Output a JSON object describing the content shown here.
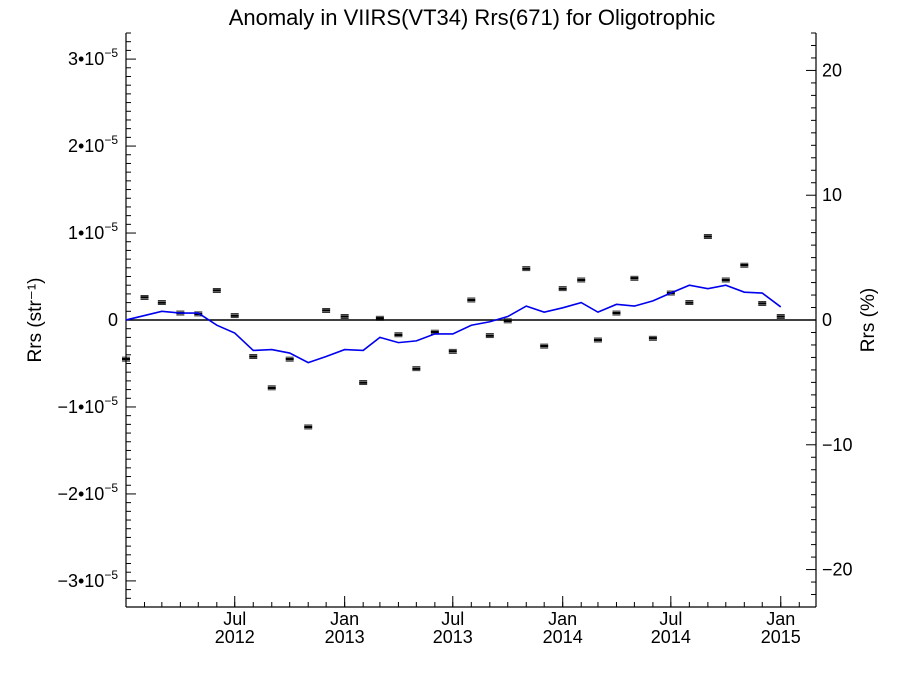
{
  "chart_data": {
    "type": "scatter",
    "title": "Anomaly in VIIRS(VT34) Rrs(671) for Oligotrophic",
    "ylabel_left": "Rrs (str⁻¹)",
    "ylabel_right": "Rrs (%)",
    "x_axis": "date",
    "xlim": [
      "2012-01-01",
      "2015-03-01"
    ],
    "ylim_left": [
      -3.3e-05,
      3.3e-05
    ],
    "ylim_right": [
      -23,
      23
    ],
    "x_ticks": [
      {
        "date": "2012-07-01",
        "month": "Jul",
        "year": "2012"
      },
      {
        "date": "2013-01-01",
        "month": "Jan",
        "year": "2013"
      },
      {
        "date": "2013-07-01",
        "month": "Jul",
        "year": "2013"
      },
      {
        "date": "2014-01-01",
        "month": "Jan",
        "year": "2014"
      },
      {
        "date": "2014-07-01",
        "month": "Jul",
        "year": "2014"
      },
      {
        "date": "2015-01-01",
        "month": "Jan",
        "year": "2015"
      }
    ],
    "y_ticks_left": [
      {
        "value": 3e-05,
        "mant": "3•10",
        "exp": "−5"
      },
      {
        "value": 2e-05,
        "mant": "2•10",
        "exp": "−5"
      },
      {
        "value": 1e-05,
        "mant": "1•10",
        "exp": "−5"
      },
      {
        "value": 0,
        "mant": "0",
        "exp": ""
      },
      {
        "value": -1e-05,
        "mant": "−1•10",
        "exp": "−5"
      },
      {
        "value": -2e-05,
        "mant": "−2•10",
        "exp": "−5"
      },
      {
        "value": -3e-05,
        "mant": "−3•10",
        "exp": "−5"
      }
    ],
    "y_ticks_right": [
      {
        "value": 20,
        "label": "20"
      },
      {
        "value": 10,
        "label": "10"
      },
      {
        "value": 0,
        "label": "0"
      },
      {
        "value": -10,
        "label": "−10"
      },
      {
        "value": -20,
        "label": "−20"
      }
    ],
    "zero_line": true,
    "grid": false,
    "series": [
      {
        "kind": "points_with_errorbars",
        "color": "#000000",
        "points": [
          {
            "x": "2012-01-01",
            "y": -4.5e-06
          },
          {
            "x": "2012-02-01",
            "y": 2.6e-06
          },
          {
            "x": "2012-03-01",
            "y": 2e-06
          },
          {
            "x": "2012-04-01",
            "y": 8e-07
          },
          {
            "x": "2012-05-01",
            "y": 7e-07
          },
          {
            "x": "2012-06-01",
            "y": 3.4e-06
          },
          {
            "x": "2012-07-01",
            "y": 5e-07
          },
          {
            "x": "2012-08-01",
            "y": -4.2e-06
          },
          {
            "x": "2012-09-01",
            "y": -7.8e-06
          },
          {
            "x": "2012-10-01",
            "y": -4.5e-06
          },
          {
            "x": "2012-11-01",
            "y": -1.23e-05
          },
          {
            "x": "2012-12-01",
            "y": 1.1e-06
          },
          {
            "x": "2013-01-01",
            "y": 4e-07
          },
          {
            "x": "2013-02-01",
            "y": -7.2e-06
          },
          {
            "x": "2013-03-01",
            "y": 2e-07
          },
          {
            "x": "2013-04-01",
            "y": -1.7e-06
          },
          {
            "x": "2013-05-01",
            "y": -5.6e-06
          },
          {
            "x": "2013-06-01",
            "y": -1.4e-06
          },
          {
            "x": "2013-07-01",
            "y": -3.6e-06
          },
          {
            "x": "2013-08-01",
            "y": 2.3e-06
          },
          {
            "x": "2013-09-01",
            "y": -1.8e-06
          },
          {
            "x": "2013-10-01",
            "y": -1e-07
          },
          {
            "x": "2013-11-01",
            "y": 5.9e-06
          },
          {
            "x": "2013-12-01",
            "y": -3e-06
          },
          {
            "x": "2014-01-01",
            "y": 3.6e-06
          },
          {
            "x": "2014-02-01",
            "y": 4.6e-06
          },
          {
            "x": "2014-03-01",
            "y": -2.3e-06
          },
          {
            "x": "2014-04-01",
            "y": 8e-07
          },
          {
            "x": "2014-05-01",
            "y": 4.8e-06
          },
          {
            "x": "2014-06-01",
            "y": -2.1e-06
          },
          {
            "x": "2014-07-01",
            "y": 3.1e-06
          },
          {
            "x": "2014-08-01",
            "y": 2e-06
          },
          {
            "x": "2014-09-01",
            "y": 9.6e-06
          },
          {
            "x": "2014-10-01",
            "y": 4.6e-06
          },
          {
            "x": "2014-11-01",
            "y": 6.3e-06
          },
          {
            "x": "2014-12-01",
            "y": 1.9e-06
          },
          {
            "x": "2015-01-01",
            "y": 4e-07
          }
        ]
      },
      {
        "kind": "line",
        "color": "#0000ee",
        "points": [
          {
            "x": "2012-01-01",
            "y": 0.0
          },
          {
            "x": "2012-03-01",
            "y": 1e-06
          },
          {
            "x": "2012-04-01",
            "y": 8e-07
          },
          {
            "x": "2012-05-01",
            "y": 8e-07
          },
          {
            "x": "2012-06-01",
            "y": -6e-07
          },
          {
            "x": "2012-07-01",
            "y": -1.5e-06
          },
          {
            "x": "2012-08-01",
            "y": -3.5e-06
          },
          {
            "x": "2012-09-01",
            "y": -3.4e-06
          },
          {
            "x": "2012-10-01",
            "y": -3.8e-06
          },
          {
            "x": "2012-11-01",
            "y": -4.9e-06
          },
          {
            "x": "2012-12-01",
            "y": -4.2e-06
          },
          {
            "x": "2013-01-01",
            "y": -3.4e-06
          },
          {
            "x": "2013-02-01",
            "y": -3.5e-06
          },
          {
            "x": "2013-03-01",
            "y": -2e-06
          },
          {
            "x": "2013-04-01",
            "y": -2.6e-06
          },
          {
            "x": "2013-05-01",
            "y": -2.4e-06
          },
          {
            "x": "2013-06-01",
            "y": -1.6e-06
          },
          {
            "x": "2013-07-01",
            "y": -1.6e-06
          },
          {
            "x": "2013-08-01",
            "y": -6e-07
          },
          {
            "x": "2013-09-01",
            "y": -2e-07
          },
          {
            "x": "2013-10-01",
            "y": 4e-07
          },
          {
            "x": "2013-11-01",
            "y": 1.6e-06
          },
          {
            "x": "2013-12-01",
            "y": 9e-07
          },
          {
            "x": "2014-01-01",
            "y": 1.4e-06
          },
          {
            "x": "2014-02-01",
            "y": 2e-06
          },
          {
            "x": "2014-03-01",
            "y": 9e-07
          },
          {
            "x": "2014-04-01",
            "y": 1.8e-06
          },
          {
            "x": "2014-05-01",
            "y": 1.6e-06
          },
          {
            "x": "2014-06-01",
            "y": 2.2e-06
          },
          {
            "x": "2014-07-01",
            "y": 3.1e-06
          },
          {
            "x": "2014-08-01",
            "y": 4e-06
          },
          {
            "x": "2014-09-01",
            "y": 3.6e-06
          },
          {
            "x": "2014-10-01",
            "y": 4e-06
          },
          {
            "x": "2014-11-01",
            "y": 3.2e-06
          },
          {
            "x": "2014-12-01",
            "y": 3.1e-06
          },
          {
            "x": "2015-01-01",
            "y": 1.5e-06
          }
        ]
      }
    ]
  }
}
